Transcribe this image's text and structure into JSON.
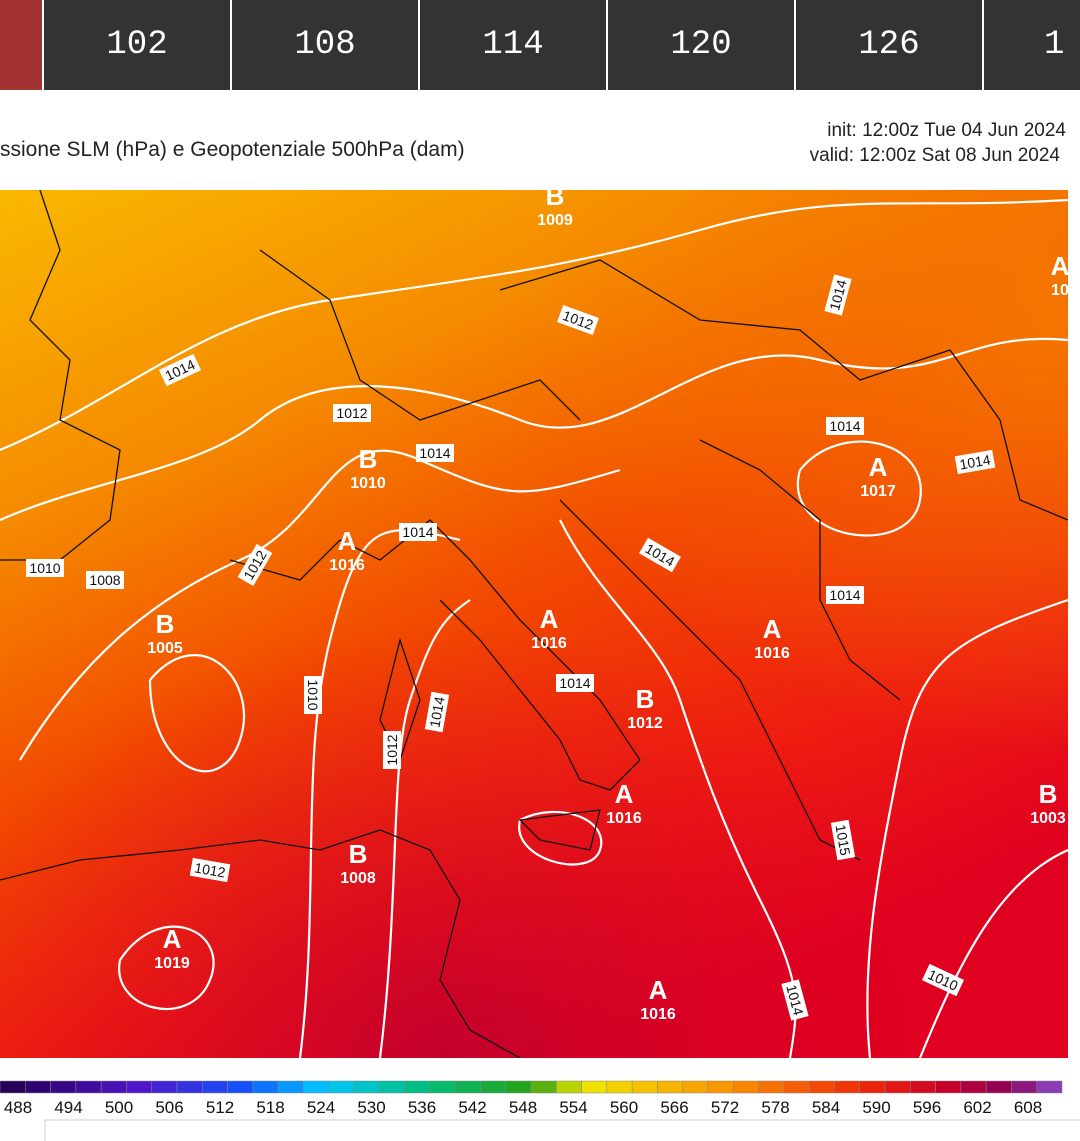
{
  "tabs": [
    "102",
    "108",
    "114",
    "120",
    "126",
    "1"
  ],
  "title": "ssione SLM (hPa) e Geopotenziale 500hPa (dam)",
  "init": "init: 12:00z Tue 04 Jun 2024",
  "valid": "valid: 12:00z Sat 08 Jun 2024",
  "centers": [
    {
      "letter": "B",
      "value": 1009
    },
    {
      "letter": "A",
      "value": 10
    },
    {
      "letter": "B",
      "value": 1010
    },
    {
      "letter": "A",
      "value": 1016
    },
    {
      "letter": "B",
      "value": 1005
    },
    {
      "letter": "A",
      "value": 1016
    },
    {
      "letter": "A",
      "value": 1017
    },
    {
      "letter": "A",
      "value": 1016
    },
    {
      "letter": "B",
      "value": 1012
    },
    {
      "letter": "A",
      "value": 1016
    },
    {
      "letter": "B",
      "value": 1003
    },
    {
      "letter": "B",
      "value": 1008
    },
    {
      "letter": "A",
      "value": 1019
    },
    {
      "letter": "A",
      "value": 1016
    }
  ],
  "isobar_labels": [
    1014,
    1012,
    1014,
    1012,
    1014,
    1014,
    1014,
    1014,
    1012,
    1010,
    1008,
    1014,
    1014,
    1010,
    1014,
    1012,
    1014,
    1012,
    1010,
    1014,
    1015
  ],
  "colorbar_labels": [
    488,
    494,
    500,
    506,
    512,
    518,
    524,
    530,
    536,
    542,
    548,
    554,
    560,
    566,
    572,
    578,
    584,
    590,
    596,
    602,
    608
  ]
}
